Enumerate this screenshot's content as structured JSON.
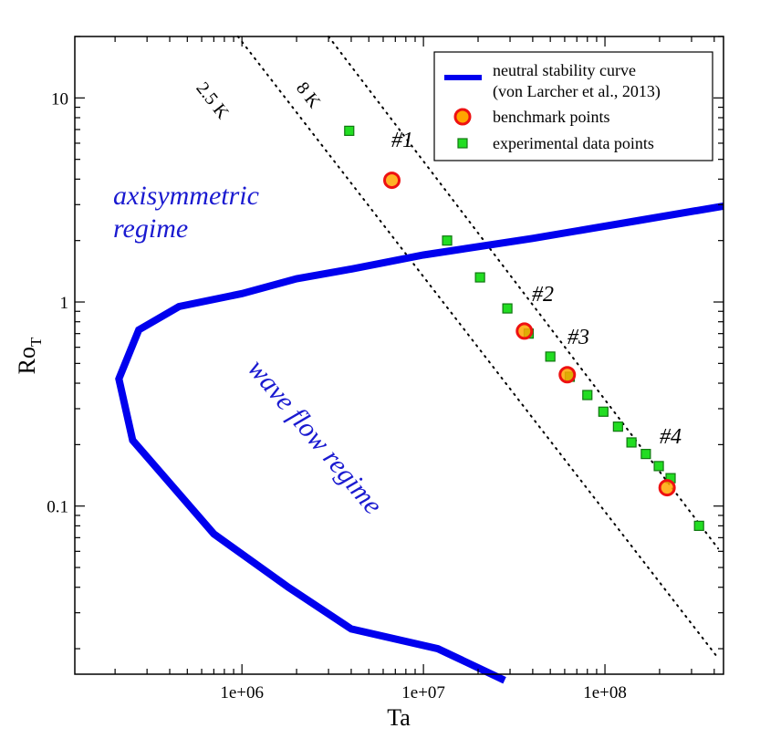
{
  "chart_data": {
    "type": "scatter",
    "xlabel": "Ta",
    "ylabel": "Ro",
    "ylabel_sub": "T",
    "xscale": "log",
    "yscale": "log",
    "xlim": [
      120000,
      450000000
    ],
    "ylim": [
      0.015,
      20
    ],
    "x_tick_labels": [
      "1e+06",
      "1e+07",
      "1e+08"
    ],
    "y_tick_labels": [
      "0.1",
      "1",
      "10"
    ],
    "colors": {
      "curve": "#0000ee",
      "regime_text": "#1a1ad0",
      "benchmark_fill": "#ffa500",
      "benchmark_edge": "#ee1111",
      "experimental_fill": "#22dd22",
      "experimental_edge": "#117711"
    },
    "legend": {
      "position": "top-right",
      "entries": [
        {
          "label": "neutral stability curve",
          "label2": "(von Larcher et al., 2013)",
          "style": "line"
        },
        {
          "label": "benchmark points",
          "style": "circle"
        },
        {
          "label": "experimental data points",
          "style": "square"
        }
      ]
    },
    "annotations": {
      "axisymmetric_1": "axisymmetric",
      "axisymmetric_2": "regime",
      "wave_flow": "wave flow regime",
      "iso_2_5K": "2.5 K",
      "iso_8K": "8 K"
    },
    "series": [
      {
        "name": "neutral stability curve",
        "type": "line",
        "x": [
          28000000,
          12000000,
          4000000,
          1800000,
          700000,
          250000,
          210000,
          270000,
          450000,
          1000000,
          2000000,
          4000000,
          10000000,
          40000000,
          150000000,
          450000000
        ],
        "y": [
          0.014,
          0.02,
          0.025,
          0.04,
          0.073,
          0.21,
          0.42,
          0.73,
          0.95,
          1.1,
          1.3,
          1.45,
          1.7,
          2.05,
          2.5,
          2.95
        ]
      },
      {
        "name": "isoline 2.5 K",
        "type": "dotted",
        "x": [
          950000,
          420000000
        ],
        "y": [
          20,
          0.018
        ]
      },
      {
        "name": "isoline 8 K",
        "type": "dotted",
        "x": [
          3000000,
          420000000
        ],
        "y": [
          20,
          0.062
        ]
      },
      {
        "name": "benchmark points",
        "type": "scatter",
        "labels": [
          "#1",
          "#2",
          "#3",
          "#4"
        ],
        "x": [
          6700000,
          36000000,
          62000000,
          220000000
        ],
        "y": [
          3.95,
          0.72,
          0.44,
          0.123
        ]
      },
      {
        "name": "experimental data points",
        "type": "scatter",
        "x": [
          3900000,
          13500000,
          20500000,
          29000000,
          38000000,
          50000000,
          64000000,
          80000000,
          98000000,
          118000000,
          140000000,
          168000000,
          198000000,
          230000000,
          330000000
        ],
        "y": [
          6.9,
          2.0,
          1.32,
          0.93,
          0.7,
          0.54,
          0.43,
          0.35,
          0.29,
          0.245,
          0.205,
          0.18,
          0.157,
          0.137,
          0.08
        ]
      }
    ]
  }
}
